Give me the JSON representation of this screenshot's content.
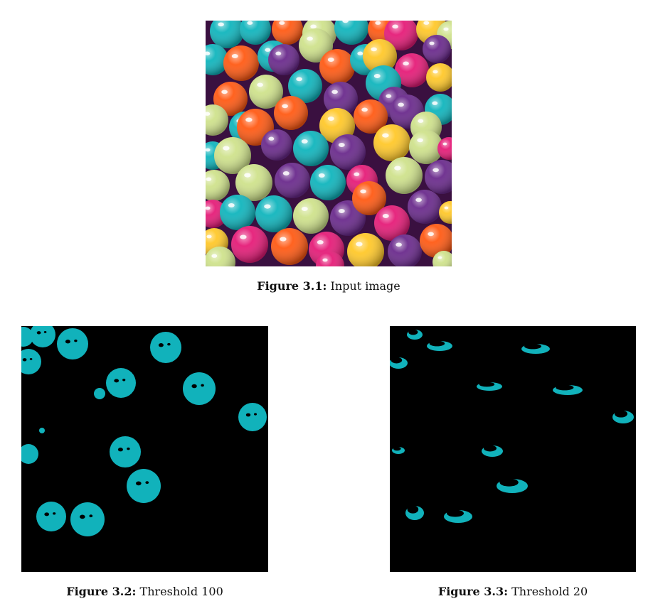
{
  "figures": [
    {
      "label": "Figure 3.1:",
      "text": "Input image"
    },
    {
      "label": "Figure 3.2:",
      "text": "Threshold 100"
    },
    {
      "label": "Figure 3.3:",
      "text": "Threshold 20"
    }
  ],
  "colors": {
    "orange": "#ff5a14",
    "teal": "#10b5bd",
    "lime": "#cfe28c",
    "purple": "#6a2a8c",
    "pink": "#e51c78",
    "yellow": "#ffc82a",
    "mask_teal": "#11b2bb",
    "mask_bg": "#000000"
  }
}
